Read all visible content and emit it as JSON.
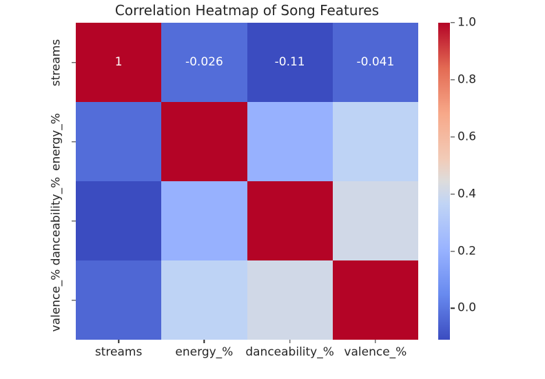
{
  "figure": {
    "background": "#ffffff",
    "text_color": "#262626"
  },
  "chart_data": {
    "type": "heatmap",
    "title": "Correlation Heatmap of Song Features",
    "categories": [
      "streams",
      "energy_%",
      "danceability_%",
      "valence_%"
    ],
    "x_tick_labels": [
      "streams",
      "energy_%",
      "danceability_%",
      "valence_%"
    ],
    "y_tick_labels": [
      "streams",
      "energy_%",
      "danceability_%",
      "valence_%"
    ],
    "matrix": [
      [
        1,
        -0.026,
        -0.11,
        -0.041
      ],
      [
        -0.026,
        1,
        0.2,
        0.36
      ],
      [
        -0.11,
        0.2,
        1,
        0.41
      ],
      [
        -0.041,
        0.36,
        0.41,
        1
      ]
    ],
    "cell_annotations": [
      [
        "1",
        "-0.026",
        "-0.11",
        "-0.041"
      ],
      [
        "",
        "",
        "",
        ""
      ],
      [
        "",
        "",
        "",
        ""
      ],
      [
        "",
        "",
        "",
        ""
      ]
    ],
    "annotation_color": "#ffffff",
    "colormap": "coolwarm",
    "vmin": -0.11,
    "vmax": 1.0,
    "colormap_stops": [
      {
        "t": 0.0,
        "color": "#3b4cc0"
      },
      {
        "t": 0.143,
        "color": "#688aef"
      },
      {
        "t": 0.286,
        "color": "#99b3ff"
      },
      {
        "t": 0.429,
        "color": "#c0d4f5"
      },
      {
        "t": 0.5,
        "color": "#dddcdc"
      },
      {
        "t": 0.571,
        "color": "#f2cbb7"
      },
      {
        "t": 0.714,
        "color": "#f7a889"
      },
      {
        "t": 0.857,
        "color": "#e36a53"
      },
      {
        "t": 1.0,
        "color": "#b40426"
      }
    ],
    "colorbar": {
      "tick_labels": [
        "1.0",
        "0.8",
        "0.6",
        "0.4",
        "0.2",
        "0.0"
      ]
    },
    "legend_position": "right",
    "grid": false
  }
}
